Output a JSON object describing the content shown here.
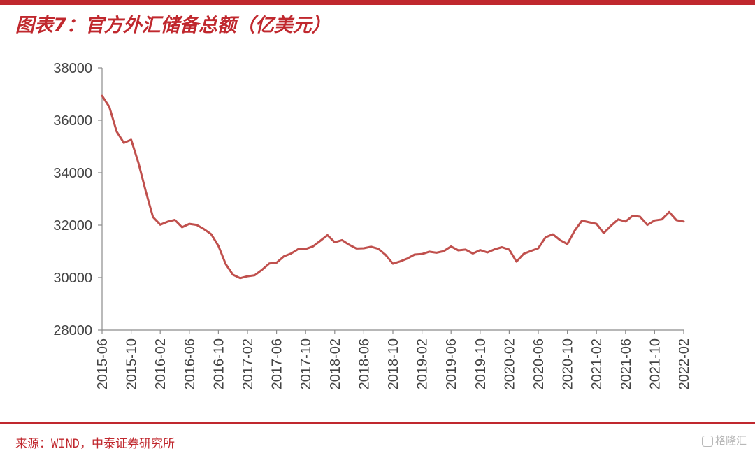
{
  "header": {
    "title": "图表7：官方外汇储备总额（亿美元）"
  },
  "footer": {
    "source": "来源：WIND，中泰证券研究所",
    "watermark": "格隆汇"
  },
  "colors": {
    "accent": "#c0282e",
    "series_line": "#c0504d",
    "axis": "#8c8c8c"
  },
  "chart_data": {
    "type": "line",
    "title": "图表7：官方外汇储备总额（亿美元）",
    "xlabel": "",
    "ylabel": "",
    "ylim": [
      28000,
      38000
    ],
    "yticks": [
      28000,
      30000,
      32000,
      34000,
      36000,
      38000
    ],
    "grid": false,
    "legend": "none",
    "xtick_labels": [
      "2015-06",
      "2015-10",
      "2016-02",
      "2016-06",
      "2016-10",
      "2017-02",
      "2017-06",
      "2017-10",
      "2018-02",
      "2018-06",
      "2018-10",
      "2019-02",
      "2019-06",
      "2019-10",
      "2020-02",
      "2020-06",
      "2020-10",
      "2021-02",
      "2021-06",
      "2021-10",
      "2022-02"
    ],
    "series": [
      {
        "x": [
          "2015-06",
          "2015-07",
          "2015-08",
          "2015-09",
          "2015-10",
          "2015-11",
          "2015-12",
          "2016-01",
          "2016-02",
          "2016-03",
          "2016-04",
          "2016-05",
          "2016-06",
          "2016-07",
          "2016-08",
          "2016-09",
          "2016-10",
          "2016-11",
          "2016-12",
          "2017-01",
          "2017-02",
          "2017-03",
          "2017-04",
          "2017-05",
          "2017-06",
          "2017-07",
          "2017-08",
          "2017-09",
          "2017-10",
          "2017-11",
          "2017-12",
          "2018-01",
          "2018-02",
          "2018-03",
          "2018-04",
          "2018-05",
          "2018-06",
          "2018-07",
          "2018-08",
          "2018-09",
          "2018-10",
          "2018-11",
          "2018-12",
          "2019-01",
          "2019-02",
          "2019-03",
          "2019-04",
          "2019-05",
          "2019-06",
          "2019-07",
          "2019-08",
          "2019-09",
          "2019-10",
          "2019-11",
          "2019-12",
          "2020-01",
          "2020-02",
          "2020-03",
          "2020-04",
          "2020-05",
          "2020-06",
          "2020-07",
          "2020-08",
          "2020-09",
          "2020-10",
          "2020-11",
          "2020-12",
          "2021-01",
          "2021-02",
          "2021-03",
          "2021-04",
          "2021-05",
          "2021-06",
          "2021-07",
          "2021-08",
          "2021-09",
          "2021-10",
          "2021-11",
          "2021-12",
          "2022-01",
          "2022-02"
        ],
        "values": [
          36930,
          36510,
          35570,
          35140,
          35260,
          34380,
          33300,
          32310,
          32020,
          32130,
          32200,
          31920,
          32050,
          32010,
          31850,
          31660,
          31210,
          30520,
          30110,
          29980,
          30050,
          30090,
          30300,
          30540,
          30570,
          30810,
          30920,
          31090,
          31090,
          31190,
          31400,
          31620,
          31350,
          31430,
          31250,
          31110,
          31120,
          31180,
          31100,
          30870,
          30530,
          30620,
          30730,
          30880,
          30900,
          30990,
          30950,
          31010,
          31190,
          31040,
          31070,
          30920,
          31050,
          30960,
          31080,
          31160,
          31070,
          30610,
          30910,
          31020,
          31120,
          31540,
          31650,
          31430,
          31280,
          31790,
          32170,
          32110,
          32050,
          31700,
          31980,
          32220,
          32140,
          32360,
          32320,
          32010,
          32180,
          32220,
          32500,
          32190,
          32140
        ]
      }
    ]
  }
}
